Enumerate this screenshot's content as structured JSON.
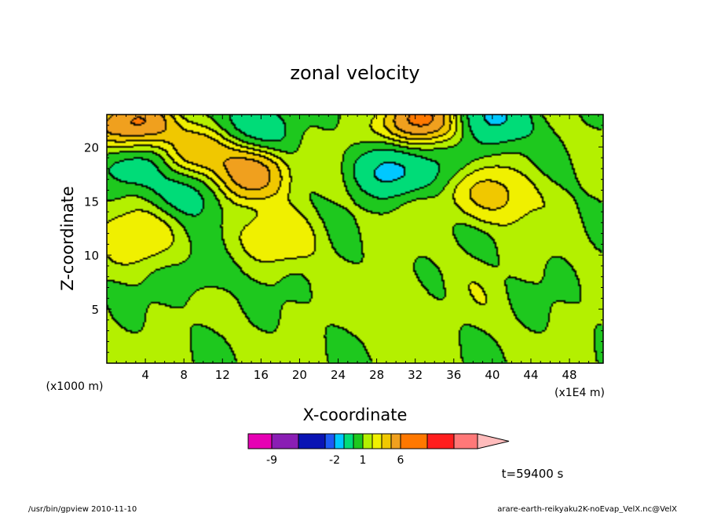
{
  "chart_data": {
    "type": "heatmap",
    "title": "zonal velocity",
    "xlabel": "X-coordinate",
    "ylabel": "Z-coordinate",
    "x_unit": "(x1000 m)",
    "x_scale_note": "(x1E4 m)",
    "xlim": [
      0,
      51.5
    ],
    "ylim": [
      0,
      23
    ],
    "x_ticks": [
      "4",
      "8",
      "12",
      "16",
      "20",
      "24",
      "28",
      "32",
      "36",
      "40",
      "44",
      "48"
    ],
    "y_ticks": [
      "5",
      "10",
      "15",
      "20"
    ],
    "colorbar": {
      "levels": [
        -12,
        -9,
        -6,
        -3,
        -2,
        -1,
        0,
        1,
        2,
        3,
        4,
        6,
        9,
        12,
        15
      ],
      "tick_labels": [
        "-9",
        "-2",
        "1",
        "6"
      ],
      "colors": [
        "#e600b4",
        "#8a1eb4",
        "#0a14b4",
        "#1e5af5",
        "#00c8ff",
        "#00dc78",
        "#1ec81e",
        "#b4f000",
        "#f0f000",
        "#f0c800",
        "#f0a01e",
        "#ff7800",
        "#ff1e1e",
        "#ff7878",
        "#ffbcbc"
      ]
    },
    "field_samples": [
      {
        "x": 3.0,
        "z": 21.5,
        "value": 6
      },
      {
        "x": 14.5,
        "z": 17.5,
        "value": 5
      },
      {
        "x": 9.5,
        "z": 19.2,
        "value": 4
      },
      {
        "x": 3.2,
        "z": 18.8,
        "value": -2.5
      },
      {
        "x": 8.5,
        "z": 16.2,
        "value": -2.2
      },
      {
        "x": 15.5,
        "z": 22.0,
        "value": -2.2
      },
      {
        "x": 29.5,
        "z": 17.8,
        "value": -3
      },
      {
        "x": 34.5,
        "z": 19.2,
        "value": -1.5
      },
      {
        "x": 40.0,
        "z": 22.5,
        "value": -3
      },
      {
        "x": 33.0,
        "z": 22.0,
        "value": 6
      },
      {
        "x": 40.0,
        "z": 15.5,
        "value": 3
      },
      {
        "x": 18.0,
        "z": 11.5,
        "value": 2
      },
      {
        "x": 3.0,
        "z": 11.5,
        "value": 2
      },
      {
        "x": 29.0,
        "z": 6.0,
        "value": 0.5
      },
      {
        "x": 10.0,
        "z": 8.0,
        "value": -0.5
      }
    ],
    "time_label": "t=59400 s"
  },
  "footer": {
    "left": "/usr/bin/gpview  2010-11-10",
    "right": "arare-earth-reikyaku2K-noEvap_VelX.nc@VelX"
  },
  "colors": {
    "background": "#ffffff",
    "axis": "#000000"
  }
}
